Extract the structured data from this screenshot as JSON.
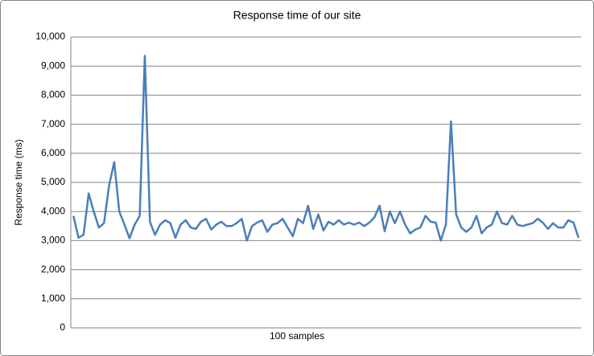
{
  "chart_data": {
    "type": "line",
    "title": "Response time of our site",
    "x_label": "100 samples",
    "y_label": "Response time (ms)",
    "series": [
      {
        "name": "Response time",
        "color": "#4a7ebb",
        "values": [
          3850,
          3100,
          3200,
          4620,
          4000,
          3450,
          3600,
          4900,
          5700,
          4000,
          3550,
          3080,
          3550,
          3850,
          9350,
          3650,
          3200,
          3550,
          3700,
          3600,
          3100,
          3550,
          3700,
          3450,
          3400,
          3650,
          3750,
          3380,
          3550,
          3650,
          3500,
          3500,
          3600,
          3750,
          3000,
          3500,
          3620,
          3700,
          3300,
          3550,
          3600,
          3750,
          3450,
          3150,
          3750,
          3600,
          4200,
          3400,
          3900,
          3350,
          3650,
          3550,
          3700,
          3550,
          3620,
          3550,
          3620,
          3500,
          3620,
          3800,
          4200,
          3320,
          4000,
          3600,
          4000,
          3550,
          3250,
          3380,
          3450,
          3850,
          3650,
          3620,
          3000,
          3550,
          7100,
          3900,
          3450,
          3300,
          3450,
          3850,
          3250,
          3450,
          3550,
          4000,
          3600,
          3550,
          3850,
          3550,
          3500,
          3550,
          3600,
          3750,
          3620,
          3400,
          3600,
          3450,
          3450,
          3700,
          3620,
          3100
        ]
      }
    ],
    "ylim": [
      0,
      10000
    ],
    "yticks": [
      0,
      {
        "value": 1000,
        "label": "1,000"
      },
      {
        "value": 2000,
        "label": "2,000"
      },
      {
        "value": 3000,
        "label": "3,000"
      },
      {
        "value": 4000,
        "label": "4,000"
      },
      {
        "value": 5000,
        "label": "5,000"
      },
      {
        "value": 6000,
        "label": "6,000"
      },
      {
        "value": 7000,
        "label": "7,000"
      },
      {
        "value": 8000,
        "label": "8,000"
      },
      {
        "value": 9000,
        "label": "9,000"
      },
      {
        "value": 10000,
        "label": "10,000"
      }
    ],
    "grid": true
  }
}
